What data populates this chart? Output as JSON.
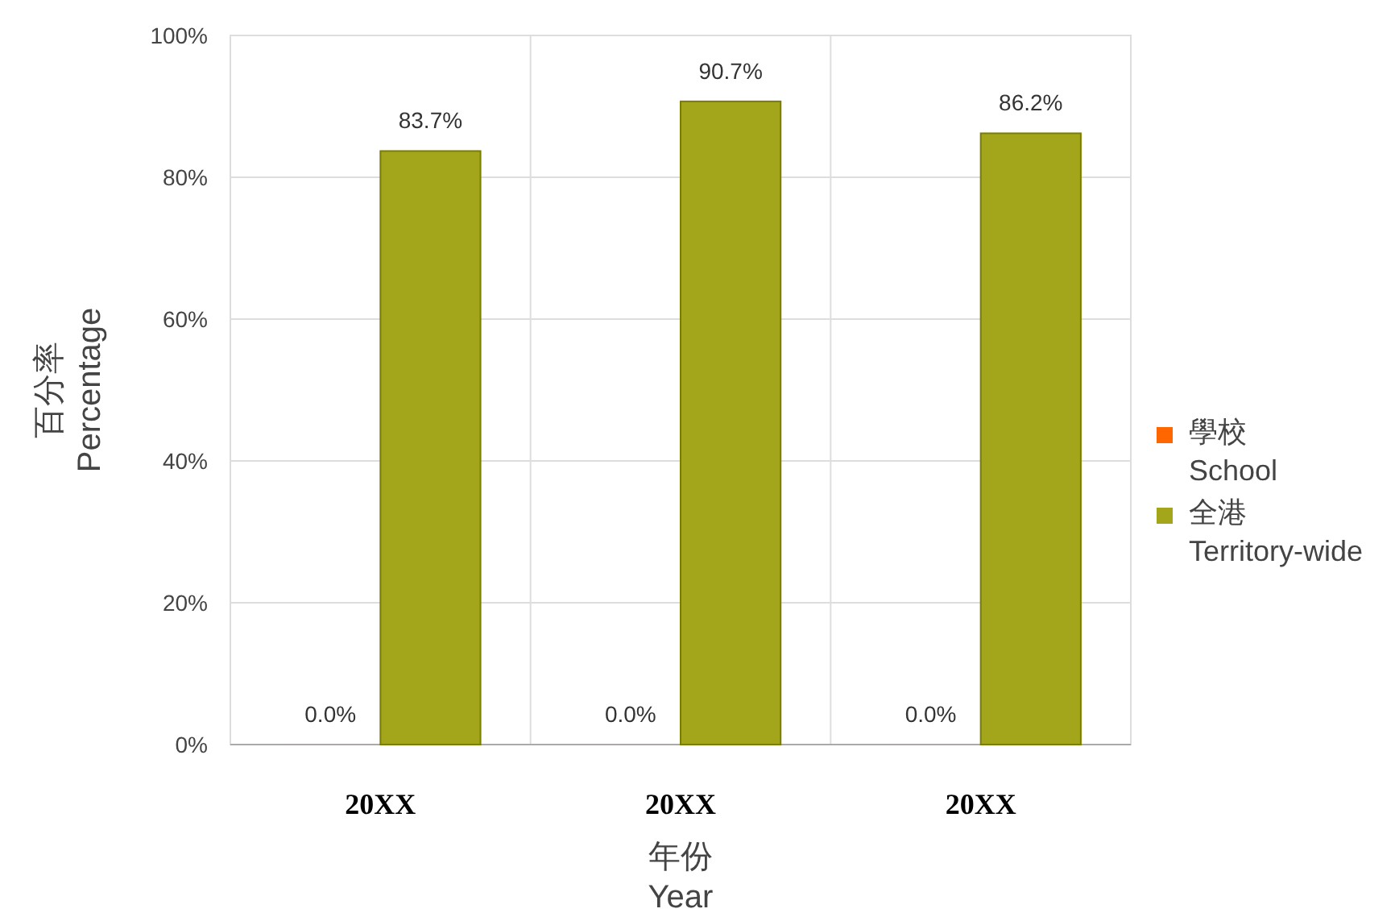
{
  "chart_data": {
    "type": "bar",
    "categories": [
      "20XX",
      "20XX",
      "20XX"
    ],
    "series": [
      {
        "name": "學校\nSchool",
        "color": "#ff6600",
        "values": [
          0,
          0,
          0
        ],
        "value_labels": [
          "0.0%",
          "0.0%",
          "0.0%"
        ]
      },
      {
        "name": "全港\nTerritory-wide",
        "color": "#a3a61a",
        "values": [
          83.7,
          90.7,
          86.2
        ],
        "value_labels": [
          "83.7%",
          "90.7%",
          "86.2%"
        ]
      }
    ],
    "ylim": [
      0,
      100
    ],
    "yticks": [
      {
        "value": 0,
        "label": "0%"
      },
      {
        "value": 20,
        "label": "20%"
      },
      {
        "value": 40,
        "label": "40%"
      },
      {
        "value": 60,
        "label": "60%"
      },
      {
        "value": 80,
        "label": "80%"
      },
      {
        "value": 100,
        "label": "100%"
      }
    ],
    "xlabel": "年份\nYear",
    "ylabel": "百分率\nPercentage",
    "grid": true,
    "legend": "right"
  }
}
